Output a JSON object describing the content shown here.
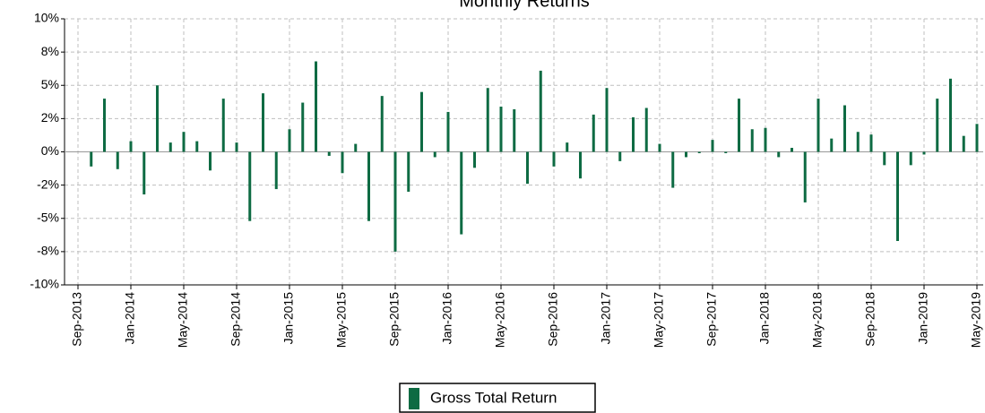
{
  "chart_data": {
    "type": "bar",
    "title": "Monthly Returns",
    "categories": [
      "Sep-2013",
      null,
      null,
      null,
      "Jan-2014",
      null,
      null,
      null,
      "May-2014",
      null,
      null,
      null,
      "Sep-2014",
      null,
      null,
      null,
      "Jan-2015",
      null,
      null,
      null,
      "May-2015",
      null,
      null,
      null,
      "Sep-2015",
      null,
      null,
      null,
      "Jan-2016",
      null,
      null,
      null,
      "May-2016",
      null,
      null,
      null,
      "Sep-2016",
      null,
      null,
      null,
      "Jan-2017",
      null,
      null,
      null,
      "May-2017",
      null,
      null,
      null,
      "Sep-2017",
      null,
      null,
      null,
      "Jan-2018",
      null,
      null,
      null,
      "May-2018",
      null,
      null,
      null,
      "Sep-2018",
      null,
      null,
      null,
      "Jan-2019",
      null,
      null,
      null,
      "May-2019"
    ],
    "series": [
      {
        "name": "Gross Total Return",
        "color": "#0e6b43",
        "values": [
          null,
          -1.1,
          4.0,
          -1.3,
          0.8,
          -3.2,
          5.0,
          0.7,
          1.5,
          0.8,
          -1.4,
          4.0,
          0.7,
          -5.2,
          4.4,
          -2.8,
          1.7,
          3.7,
          6.8,
          -0.3,
          -1.6,
          0.6,
          -5.2,
          4.2,
          -7.5,
          -3.0,
          4.5,
          -0.4,
          3.0,
          -6.2,
          -1.2,
          4.8,
          3.4,
          3.2,
          -2.4,
          6.1,
          -1.1,
          0.7,
          -2.0,
          2.8,
          4.8,
          -0.7,
          2.6,
          3.3,
          0.6,
          -2.7,
          -0.4,
          -0.1,
          0.9,
          -0.1,
          4.0,
          1.7,
          1.8,
          -0.4,
          0.3,
          -3.8,
          4.0,
          1.0,
          3.5,
          1.5,
          1.3,
          -1.0,
          -6.7,
          -1.0,
          -0.2,
          4.0,
          5.5,
          1.2,
          2.1
        ]
      }
    ],
    "ylim": [
      -10,
      10
    ],
    "yticks": [
      {
        "value": -10,
        "label": "-10%"
      },
      {
        "value": -7.5,
        "label": "-8%"
      },
      {
        "value": -5,
        "label": "-5%"
      },
      {
        "value": -2.5,
        "label": "-2%"
      },
      {
        "value": 0,
        "label": "0%"
      },
      {
        "value": 2.5,
        "label": "2%"
      },
      {
        "value": 5,
        "label": "5%"
      },
      {
        "value": 7.5,
        "label": "8%"
      },
      {
        "value": 10,
        "label": "10%"
      }
    ],
    "grid": true,
    "legend": "bottom"
  }
}
